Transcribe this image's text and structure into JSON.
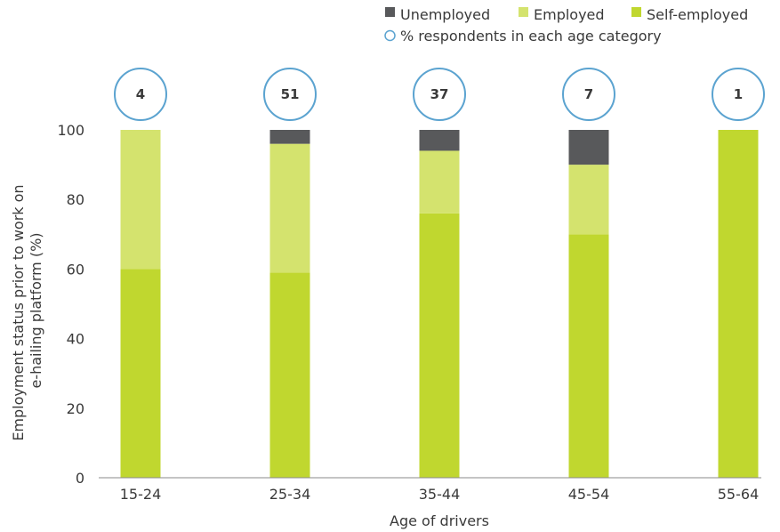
{
  "chart_data": {
    "type": "bar",
    "stacked": true,
    "categories": [
      "15-24",
      "25-34",
      "35-44",
      "45-54",
      "55-64"
    ],
    "series": [
      {
        "name": "Self-employed",
        "color": "#c0d72f",
        "values": [
          60,
          59,
          76,
          70,
          100
        ]
      },
      {
        "name": "Employed",
        "color": "#d4e36e",
        "values": [
          40,
          37,
          18,
          20,
          0
        ]
      },
      {
        "name": "Unemployed",
        "color": "#58595b",
        "values": [
          0,
          4,
          6,
          10,
          0
        ]
      }
    ],
    "respondents": {
      "name": "% respondents in each age category",
      "color": "#5ba3d0",
      "values": [
        4,
        51,
        37,
        7,
        1
      ]
    },
    "legend_order": [
      "Unemployed",
      "Employed",
      "Self-employed"
    ],
    "legend_position": "top-right",
    "xlabel": "Age of drivers",
    "ylabel_lines": [
      "Employment status prior to work on",
      "e-hailing platform (%)"
    ],
    "ylim": [
      0,
      100
    ],
    "yticks": [
      0,
      20,
      40,
      60,
      80,
      100
    ],
    "grid": false
  }
}
